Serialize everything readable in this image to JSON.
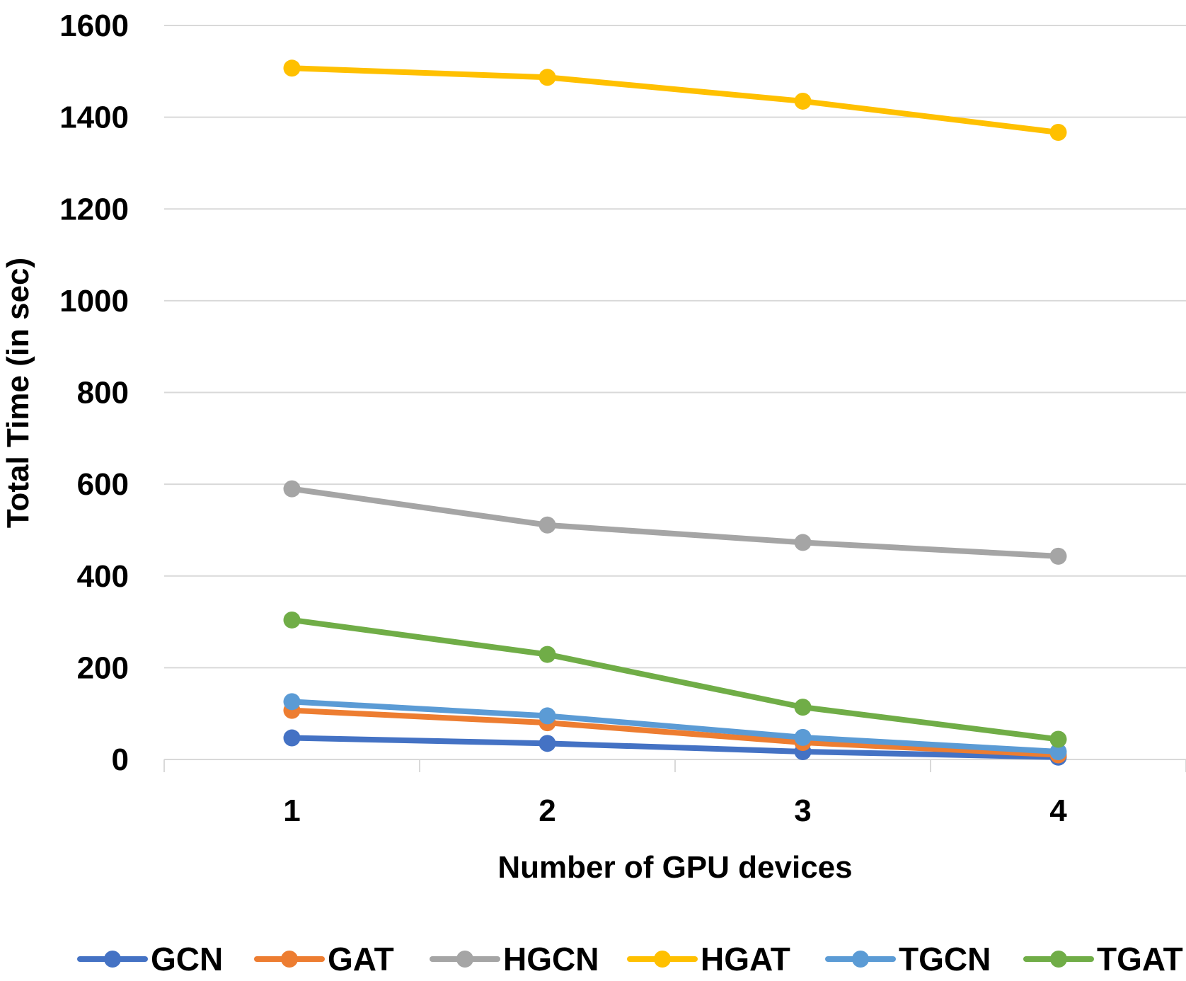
{
  "chart_data": {
    "type": "line",
    "title": "",
    "xlabel": "Number of GPU devices",
    "ylabel": "Total Time (in sec)",
    "categories": [
      "1",
      "2",
      "3",
      "4"
    ],
    "ylim": [
      0,
      1600
    ],
    "yticks": [
      "0",
      "200",
      "400",
      "600",
      "800",
      "1000",
      "1200",
      "1400",
      "1600"
    ],
    "grid": true,
    "legend_position": "bottom",
    "series": [
      {
        "name": "GCN",
        "color": "#4472C4",
        "values": [
          47,
          35,
          17,
          5
        ]
      },
      {
        "name": "GAT",
        "color": "#ED7D31",
        "values": [
          107,
          80,
          37,
          10
        ]
      },
      {
        "name": "HGCN",
        "color": "#A5A5A5",
        "values": [
          590,
          511,
          473,
          443
        ]
      },
      {
        "name": "HGAT",
        "color": "#FFC000",
        "values": [
          1507,
          1487,
          1435,
          1367
        ]
      },
      {
        "name": "TGCN",
        "color": "#5B9BD5",
        "values": [
          126,
          95,
          48,
          17
        ]
      },
      {
        "name": "TGAT",
        "color": "#70AD47",
        "values": [
          304,
          229,
          114,
          44
        ]
      }
    ]
  }
}
